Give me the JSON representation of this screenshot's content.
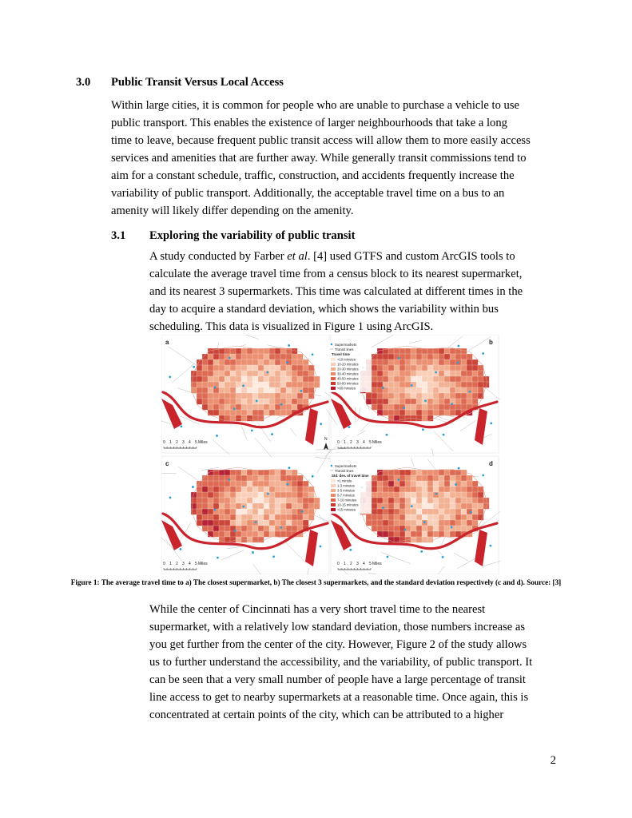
{
  "section": {
    "number": "3.0",
    "title": "Public Transit Versus Local Access",
    "lines": [
      "Within large cities, it is common for people who are unable to purchase a vehicle to use",
      "public transport. This enables the existence of larger neighbourhoods that take a long",
      "time to leave, because frequent public transit access will allow them to more easily access",
      "services and amenities that are further away. While generally transit commissions tend to",
      "aim for a constant schedule, traffic, construction, and accidents frequently increase the",
      "variability of public transport. Additionally, the acceptable travel time on a bus to an",
      "amenity will likely differ depending on the amenity."
    ]
  },
  "subsection": {
    "number": "3.1",
    "title": "Exploring the variability of public transit",
    "lines_before": [
      {
        "pre": "A study conducted by Farber ",
        "em": "et al",
        "post": ". [4] used GTFS and custom ArcGIS tools to"
      },
      {
        "pre": "calculate the average travel time from a census block to its nearest supermarket,"
      },
      {
        "pre": "and its nearest 3 supermarkets. This time was calculated at different times in the"
      },
      {
        "pre": "day to acquire a standard deviation, which shows the variability within bus"
      },
      {
        "pre": "scheduling. This data is visualized in Figure 1 using ArcGIS."
      }
    ],
    "lines_after": [
      "While the center of Cincinnati has a very short travel time to the nearest",
      "supermarket, with a relatively low standard deviation, those numbers increase as",
      "you get further from the center of the city. However, Figure 2 of the study allows",
      "us to further understand the accessibility, and the variability, of public transport. It",
      "can be seen that a very small number of people have a large percentage of transit",
      "line access to get to nearby supermarkets at a reasonable time. Once again, this is",
      "concentrated at certain points of the city, which can be attributed to a higher"
    ]
  },
  "figure": {
    "caption": "Figure 1: The average travel time to a) The closest supermarket, b) The closest 3 supermarkets, and the standard deviation respectively (c and d). Source: [3]",
    "panel_labels": [
      "a",
      "b",
      "c",
      "d"
    ],
    "scalebar": {
      "ticks": [
        "0",
        "1",
        "2",
        "3",
        "4",
        "5"
      ],
      "unit": "Miles"
    },
    "north": "N",
    "legend_top": {
      "supermarkets": "Supermarkets",
      "transit": "Transit lines",
      "title": "Travel time",
      "classes": [
        "<10 minutes",
        "10-20 minutes",
        "20-30 minutes",
        "30-40 minutes",
        "40-50 minutes",
        "50-60 minutes",
        ">60 minutes"
      ]
    },
    "legend_bottom": {
      "supermarkets": "Supermarkets",
      "transit": "Transit lines",
      "title": "Std. dev. of travel time",
      "classes": [
        "<1 minute",
        "1-3 minutes",
        "3-5 minutes",
        "5-7 minutes",
        "7-10 minutes",
        "10-15 minutes",
        ">15 minutes"
      ]
    },
    "colors": {
      "ramp": [
        "#fde8dc",
        "#f9cdb6",
        "#f3ad8e",
        "#ea8a6a",
        "#dc644a",
        "#c93c2f",
        "#b2182b"
      ],
      "supermarket": "#2a9fd6",
      "river": "#c9232c",
      "roads": "#b8b8b8"
    }
  },
  "page_number": "2"
}
